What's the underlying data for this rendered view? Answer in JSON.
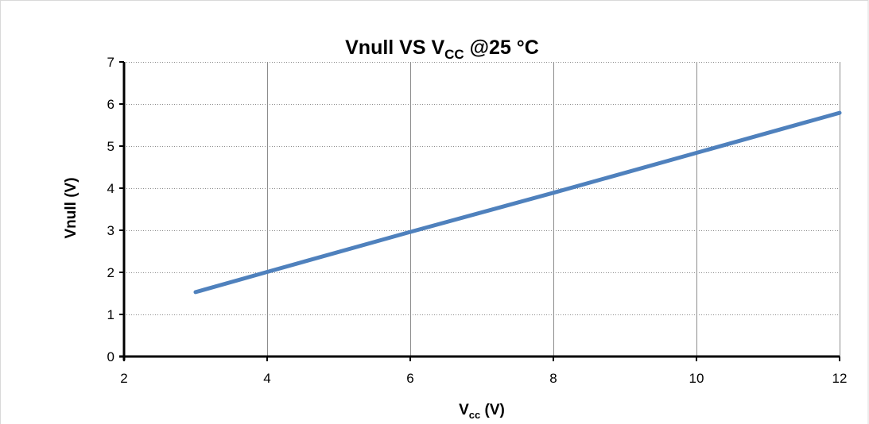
{
  "chart_data": {
    "type": "line",
    "title": {
      "main": "Vnull VS  V",
      "sub": "CC",
      "rest": " @25 °C"
    },
    "xlabel": {
      "main": "V",
      "sub": "cc",
      "rest": " (V)"
    },
    "ylabel": "Vnull (V)",
    "xlim": [
      2,
      12
    ],
    "ylim": [
      0,
      7
    ],
    "xticks": [
      "2",
      "4",
      "6",
      "8",
      "10",
      "12"
    ],
    "yticks": [
      "0",
      "1",
      "2",
      "3",
      "4",
      "5",
      "6",
      "7"
    ],
    "grid": {
      "vertical": true,
      "horizontal": true,
      "horizontal_style": "dotted"
    },
    "legend": "none",
    "series": [
      {
        "color": "#4f81bd",
        "x": [
          3,
          4,
          6,
          8,
          10,
          12
        ],
        "y": [
          1.53,
          2.01,
          2.96,
          3.89,
          4.84,
          5.79
        ]
      }
    ]
  }
}
